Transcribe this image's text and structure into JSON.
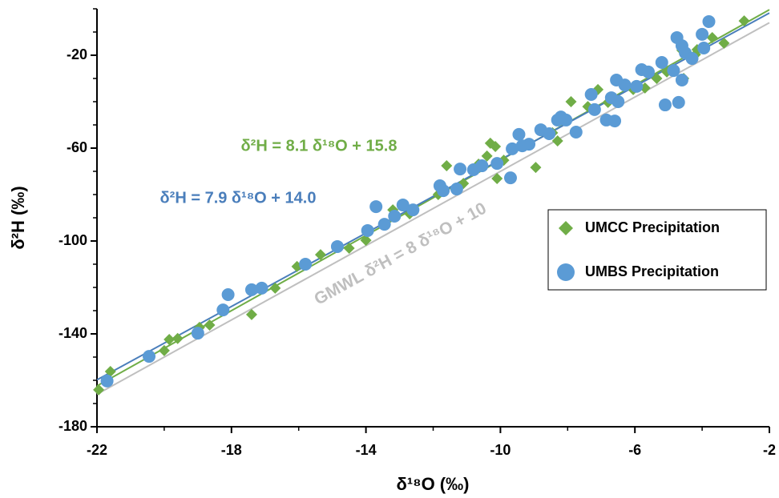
{
  "chart_data": {
    "type": "scatter",
    "x_label": "δ¹⁸O (‰)",
    "y_label": "δ²H (‰)",
    "xlim": [
      -22,
      -2
    ],
    "xticks": [
      -22,
      -18,
      -14,
      -10,
      -6,
      -2
    ],
    "xminorticks": [
      -20,
      -16,
      -12,
      -8,
      -4
    ],
    "ylim": [
      -180,
      0
    ],
    "yticks": [
      -180,
      -140,
      -100,
      -60,
      -20
    ],
    "yminorticks": [
      -170,
      -160,
      -150,
      -130,
      -120,
      -110,
      -90,
      -80,
      -70,
      -50,
      -40,
      -30,
      -10,
      0
    ],
    "series": [
      {
        "name": "UMCC Precipitation",
        "color": "#70ad47",
        "marker": "diamond",
        "x": [
          -21.95,
          -21.6,
          -20.0,
          -19.85,
          -19.6,
          -18.95,
          -18.65,
          -17.4,
          -16.7,
          -16.05,
          -15.35,
          -14.5,
          -14.0,
          -13.2,
          -12.7,
          -11.85,
          -11.6,
          -11.1,
          -10.65,
          -10.3,
          -10.15,
          -10.1,
          -10.4,
          -9.9,
          -8.95,
          -8.45,
          -8.3,
          -7.9,
          -7.4,
          -7.1,
          -6.8,
          -6.05,
          -5.7,
          -5.35,
          -5.05,
          -4.55,
          -4.6,
          -4.2,
          -3.7,
          -3.35,
          -2.75,
          -4.15
        ],
        "values": [
          -164.1,
          -156.2,
          -147.2,
          -142.4,
          -142,
          -137.2,
          -136.2,
          -131.7,
          -120.3,
          -111,
          -105.9,
          -103.1,
          -99.7,
          -86.6,
          -88.3,
          -80,
          -67.6,
          -75.2,
          -66.9,
          -57.9,
          -59.3,
          -73.1,
          -63.4,
          -65.2,
          -68.3,
          -53.4,
          -56.9,
          -40,
          -42.1,
          -34.8,
          -40.3,
          -34.8,
          -34.1,
          -30,
          -27.2,
          -30,
          -17.9,
          -19.7,
          -12.4,
          -14.8,
          -5.2,
          -17.6
        ]
      },
      {
        "name": "UMBS Precipitation",
        "color": "#5b9bd5",
        "marker": "circle",
        "x": [
          -21.7,
          -20.45,
          -19.0,
          -18.25,
          -18.1,
          -17.4,
          -17.1,
          -15.8,
          -14.85,
          -13.95,
          -13.7,
          -13.45,
          -13.15,
          -12.9,
          -12.6,
          -11.8,
          -11.7,
          -11.3,
          -11.2,
          -10.8,
          -10.55,
          -10.1,
          -9.7,
          -9.65,
          -9.45,
          -9.35,
          -9.15,
          -8.8,
          -8.55,
          -8.3,
          -8.05,
          -7.75,
          -7.3,
          -7.2,
          -6.85,
          -6.6,
          -6.7,
          -6.5,
          -6.3,
          -5.95,
          -5.8,
          -5.6,
          -5.2,
          -5.1,
          -4.7,
          -4.85,
          -4.6,
          -4.75,
          -4.6,
          -4.5,
          -4.3,
          -3.95,
          -4.0,
          -3.8,
          -6.55,
          -8.2
        ],
        "values": [
          -160.3,
          -149.7,
          -139.7,
          -129.7,
          -123.1,
          -121,
          -120.3,
          -110,
          -102.4,
          -95.5,
          -85.2,
          -92.8,
          -89.3,
          -84.5,
          -86.6,
          -76.2,
          -78.3,
          -77.6,
          -69,
          -69.3,
          -67.6,
          -66.6,
          -72.8,
          -60.3,
          -54.1,
          -59,
          -58.3,
          -52.1,
          -53.8,
          -47.9,
          -47.9,
          -53.1,
          -36.9,
          -43.4,
          -47.9,
          -48.3,
          -38.3,
          -40,
          -32.8,
          -33.4,
          -26.2,
          -27.2,
          -23.1,
          -41.4,
          -40.3,
          -26.6,
          -30.7,
          -12.4,
          -15.9,
          -19,
          -21.4,
          -16.9,
          -11,
          -5.5,
          -30.7,
          -46.6
        ]
      }
    ],
    "fit_lines": [
      {
        "label": "GMWL δ²H = 8 δ¹⁸O + 10",
        "color": "#bfbfbf",
        "slope": 8,
        "intercept": 10
      },
      {
        "label": "δ²H = 8.1 δ¹⁸O + 15.8",
        "color": "#70ad47",
        "slope": 8.1,
        "intercept": 15.8
      },
      {
        "label": "δ²H = 7.9 δ¹⁸O + 14.0",
        "color": "#4a7ebb",
        "slope": 7.9,
        "intercept": 14.0
      }
    ]
  }
}
